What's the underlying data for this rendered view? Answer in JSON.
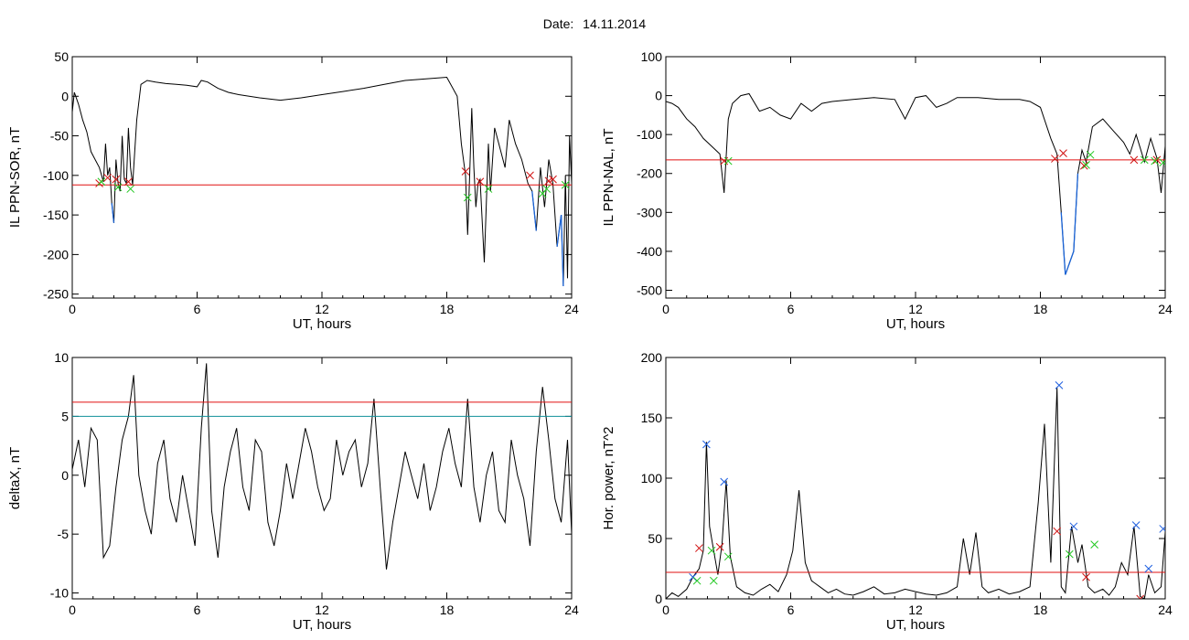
{
  "header": {
    "date_label": "Date:",
    "date_value": "14.11.2014"
  },
  "colors": {
    "trace": "#000000",
    "threshold": "#e01010",
    "secondary_threshold": "#10909a",
    "below_threshold_trace": "#1a64d8",
    "marker_red": "#d01010",
    "marker_green": "#20c820",
    "marker_blue": "#2060e0"
  },
  "chart_data": [
    {
      "type": "line",
      "ylabel": "IL PPN-SOR, nT",
      "xlabel": "UT, hours",
      "xlim": [
        0,
        24
      ],
      "xticks": [
        0,
        6,
        12,
        18,
        24
      ],
      "ylim": [
        -255,
        50
      ],
      "yticks": [
        50,
        0,
        -50,
        -100,
        -150,
        -200,
        -250
      ],
      "thresholds": [
        {
          "value": -112,
          "color": "red"
        }
      ],
      "highlight_below_threshold": true,
      "series": [
        {
          "x": [
            0,
            0.1,
            0.3,
            0.5,
            0.7,
            0.9,
            1.1,
            1.3,
            1.5,
            1.6,
            1.7,
            1.8,
            1.9,
            2.0,
            2.1,
            2.2,
            2.3,
            2.4,
            2.5,
            2.6,
            2.7,
            2.8,
            2.9,
            3.0,
            3.1,
            3.3,
            3.6,
            4,
            4.5,
            5,
            5.5,
            6,
            6.2,
            6.5,
            7,
            7.5,
            8,
            9,
            10,
            11,
            12,
            13,
            14,
            15,
            16,
            17,
            18,
            18.5,
            18.7,
            18.9,
            19.0,
            19.1,
            19.2,
            19.3,
            19.4,
            19.5,
            19.6,
            19.8,
            20,
            20.1,
            20.3,
            20.5,
            20.8,
            21,
            21.3,
            21.6,
            21.9,
            22.1,
            22.3,
            22.5,
            22.7,
            22.9,
            23.1,
            23.3,
            23.5,
            23.6,
            23.7,
            23.8,
            23.9,
            24
          ],
          "y": [
            -20,
            5,
            -10,
            -30,
            -45,
            -70,
            -80,
            -90,
            -108,
            -60,
            -100,
            -90,
            -135,
            -160,
            -80,
            -110,
            -120,
            -50,
            -105,
            -110,
            -40,
            -90,
            -112,
            -70,
            -30,
            15,
            20,
            18,
            16,
            15,
            14,
            12,
            20,
            18,
            10,
            5,
            2,
            -2,
            -5,
            -2,
            2,
            6,
            10,
            15,
            20,
            22,
            24,
            0,
            -60,
            -100,
            -175,
            -100,
            -15,
            -90,
            -140,
            -110,
            -105,
            -210,
            -60,
            -120,
            -40,
            -60,
            -90,
            -30,
            -60,
            -80,
            -110,
            -120,
            -170,
            -90,
            -140,
            -80,
            -110,
            -190,
            -150,
            -240,
            -100,
            -230,
            -50,
            -110
          ]
        }
      ],
      "markers": [
        {
          "color": "red",
          "x": [
            1.3,
            1.7,
            2.1,
            2.7,
            18.9,
            19.6,
            22.0,
            22.9,
            23.1
          ],
          "y": [
            -110,
            -103,
            -105,
            -108,
            -95,
            -108,
            -100,
            -107,
            -105
          ]
        },
        {
          "color": "green",
          "x": [
            1.4,
            2.2,
            2.8,
            19.0,
            20.0,
            22.6,
            22.8,
            23.7
          ],
          "y": [
            -108,
            -115,
            -117,
            -128,
            -117,
            -123,
            -117,
            -112
          ]
        }
      ]
    },
    {
      "type": "line",
      "ylabel": "IL PPN-NAL, nT",
      "xlabel": "UT, hours",
      "xlim": [
        0,
        24
      ],
      "xticks": [
        0,
        6,
        12,
        18,
        24
      ],
      "ylim": [
        -520,
        100
      ],
      "yticks": [
        100,
        0,
        -100,
        -200,
        -300,
        -400,
        -500
      ],
      "thresholds": [
        {
          "value": -165,
          "color": "red"
        }
      ],
      "highlight_below_threshold": true,
      "series": [
        {
          "x": [
            0,
            0.3,
            0.6,
            1.0,
            1.4,
            1.8,
            2.2,
            2.6,
            2.8,
            3.0,
            3.2,
            3.6,
            4,
            4.5,
            5,
            5.5,
            6,
            6.5,
            7,
            7.5,
            8,
            9,
            10,
            11,
            11.5,
            12,
            12.5,
            13,
            13.5,
            14,
            15,
            16,
            17,
            17.5,
            18,
            18.5,
            18.8,
            19.0,
            19.2,
            19.4,
            19.6,
            19.8,
            20,
            20.2,
            20.5,
            21,
            21.5,
            22,
            22.3,
            22.6,
            23,
            23.3,
            23.6,
            23.8,
            24
          ],
          "y": [
            -15,
            -20,
            -30,
            -60,
            -80,
            -110,
            -130,
            -150,
            -250,
            -60,
            -20,
            0,
            5,
            -40,
            -30,
            -50,
            -60,
            -20,
            -40,
            -20,
            -15,
            -10,
            -5,
            -10,
            -60,
            -5,
            0,
            -30,
            -20,
            -5,
            -5,
            -10,
            -10,
            -15,
            -30,
            -110,
            -150,
            -300,
            -460,
            -430,
            -400,
            -200,
            -140,
            -170,
            -80,
            -60,
            -90,
            -120,
            -150,
            -100,
            -170,
            -110,
            -160,
            -250,
            -130
          ]
        }
      ],
      "markers": [
        {
          "color": "red",
          "x": [
            2.8,
            18.7,
            19.1,
            20.1,
            22.5,
            23.6
          ],
          "y": [
            -168,
            -162,
            -148,
            -180,
            -165,
            -165
          ]
        },
        {
          "color": "green",
          "x": [
            3.0,
            20.2,
            20.4,
            23.0,
            23.5,
            23.9
          ],
          "y": [
            -168,
            -178,
            -152,
            -165,
            -168,
            -172
          ]
        }
      ]
    },
    {
      "type": "line",
      "ylabel": "deltaX, nT",
      "xlabel": "UT, hours",
      "xlim": [
        0,
        24
      ],
      "xticks": [
        0,
        6,
        12,
        18,
        24
      ],
      "ylim": [
        -10.5,
        10
      ],
      "yticks": [
        10,
        5,
        0,
        -5,
        -10
      ],
      "thresholds": [
        {
          "value": 6.2,
          "color": "red"
        },
        {
          "value": 5.0,
          "color": "teal"
        }
      ],
      "highlight_below_threshold": false,
      "series": [
        {
          "x": [
            0,
            0.3,
            0.6,
            0.9,
            1.2,
            1.5,
            1.8,
            2.1,
            2.4,
            2.7,
            2.95,
            3.2,
            3.5,
            3.8,
            4.1,
            4.4,
            4.7,
            5.0,
            5.3,
            5.6,
            5.9,
            6.2,
            6.45,
            6.7,
            7.0,
            7.3,
            7.6,
            7.9,
            8.2,
            8.5,
            8.8,
            9.1,
            9.4,
            9.7,
            10.0,
            10.3,
            10.6,
            10.9,
            11.2,
            11.5,
            11.8,
            12.1,
            12.4,
            12.7,
            13.0,
            13.3,
            13.6,
            13.9,
            14.2,
            14.5,
            14.8,
            15.1,
            15.4,
            15.7,
            16.0,
            16.3,
            16.6,
            16.9,
            17.2,
            17.5,
            17.8,
            18.1,
            18.4,
            18.7,
            19.0,
            19.3,
            19.6,
            19.9,
            20.2,
            20.5,
            20.8,
            21.1,
            21.4,
            21.7,
            22.0,
            22.3,
            22.6,
            22.9,
            23.2,
            23.5,
            23.8,
            24
          ],
          "y": [
            0.5,
            3,
            -1,
            4,
            3,
            -7,
            -6,
            -1,
            3,
            5,
            8.5,
            0,
            -3,
            -5,
            1,
            3,
            -2,
            -4,
            0,
            -3,
            -6,
            4,
            9.5,
            -3,
            -7,
            -1,
            2,
            4,
            -1,
            -3,
            3,
            2,
            -4,
            -6,
            -3,
            1,
            -2,
            1,
            4,
            2,
            -1,
            -3,
            -2,
            3,
            0,
            2,
            3,
            -1,
            1,
            6.5,
            -1,
            -8,
            -4,
            -1,
            2,
            0,
            -2,
            1,
            -3,
            -1,
            2,
            4,
            1,
            -1,
            6.5,
            -1,
            -4,
            0,
            2,
            -3,
            -4,
            3,
            0,
            -2,
            -6,
            2,
            7.5,
            3,
            -2,
            -4,
            3,
            -5
          ]
        }
      ],
      "markers": []
    },
    {
      "type": "line",
      "ylabel": "Hor. power, nT^2",
      "xlabel": "UT, hours",
      "xlim": [
        0,
        24
      ],
      "xticks": [
        0,
        6,
        12,
        18,
        24
      ],
      "ylim": [
        0,
        200
      ],
      "yticks": [
        200,
        150,
        100,
        50,
        0
      ],
      "thresholds": [
        {
          "value": 22,
          "color": "red"
        }
      ],
      "highlight_below_threshold": false,
      "series": [
        {
          "x": [
            0,
            0.3,
            0.6,
            1.0,
            1.3,
            1.6,
            1.8,
            1.95,
            2.1,
            2.3,
            2.5,
            2.7,
            2.9,
            3.1,
            3.4,
            3.8,
            4.2,
            4.6,
            5.0,
            5.4,
            5.8,
            6.1,
            6.4,
            6.7,
            7.0,
            7.4,
            7.8,
            8.2,
            8.6,
            9.0,
            9.5,
            10,
            10.5,
            11,
            11.5,
            12,
            12.5,
            13,
            13.5,
            14,
            14.3,
            14.6,
            14.9,
            15.2,
            15.5,
            16,
            16.5,
            17,
            17.5,
            17.9,
            18.2,
            18.5,
            18.8,
            19.0,
            19.2,
            19.5,
            19.8,
            20.0,
            20.3,
            20.6,
            21,
            21.3,
            21.6,
            21.9,
            22.2,
            22.5,
            22.8,
            23.0,
            23.2,
            23.5,
            23.8,
            24
          ],
          "y": [
            0,
            5,
            2,
            8,
            18,
            25,
            40,
            130,
            60,
            40,
            20,
            45,
            98,
            35,
            10,
            5,
            3,
            8,
            12,
            6,
            20,
            40,
            90,
            30,
            15,
            10,
            5,
            8,
            4,
            3,
            6,
            10,
            4,
            5,
            8,
            6,
            4,
            3,
            5,
            10,
            50,
            20,
            55,
            10,
            5,
            8,
            4,
            6,
            10,
            80,
            145,
            30,
            175,
            10,
            5,
            60,
            30,
            45,
            10,
            5,
            8,
            3,
            10,
            30,
            20,
            60,
            2,
            0,
            20,
            5,
            10,
            55
          ]
        }
      ],
      "markers": [
        {
          "color": "blue",
          "x": [
            1.3,
            1.95,
            2.8,
            18.9,
            19.6,
            22.6,
            23.2,
            23.9
          ],
          "y": [
            18,
            128,
            97,
            177,
            60,
            61,
            25,
            58
          ]
        },
        {
          "color": "red",
          "x": [
            1.6,
            2.6,
            18.8,
            20.2,
            22.8
          ],
          "y": [
            42,
            43,
            56,
            18,
            0
          ]
        },
        {
          "color": "green",
          "x": [
            1.5,
            2.2,
            2.3,
            3.0,
            19.4,
            20.6
          ],
          "y": [
            15,
            40,
            15,
            35,
            37,
            45
          ]
        }
      ]
    }
  ]
}
